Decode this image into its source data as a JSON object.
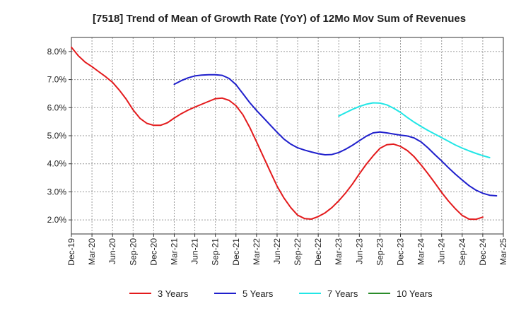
{
  "chart_data": {
    "type": "line",
    "title": "[7518]  Trend of Mean of Growth Rate (YoY) of 12Mo Mov Sum of Revenues",
    "xlabel": "",
    "ylabel": "",
    "ylim": [
      1.5,
      8.5
    ],
    "y_ticks": [
      2.0,
      3.0,
      4.0,
      5.0,
      6.0,
      7.0,
      8.0
    ],
    "y_tick_labels": [
      "2.0%",
      "3.0%",
      "4.0%",
      "5.0%",
      "6.0%",
      "7.0%",
      "8.0%"
    ],
    "x_tick_labels": [
      "Dec-19",
      "Mar-20",
      "Jun-20",
      "Sep-20",
      "Dec-20",
      "Mar-21",
      "Jun-21",
      "Sep-21",
      "Dec-21",
      "Mar-22",
      "Jun-22",
      "Sep-22",
      "Dec-22",
      "Mar-23",
      "Jun-23",
      "Sep-23",
      "Dec-23",
      "Mar-24",
      "Jun-24",
      "Sep-24",
      "Dec-24",
      "Mar-25"
    ],
    "x_range_months": [
      0,
      63
    ],
    "grid": true,
    "legend_position": "bottom",
    "series": [
      {
        "name": "3 Years",
        "color": "#e31a1c",
        "start_month": 0,
        "values": [
          8.15,
          7.85,
          7.62,
          7.46,
          7.28,
          7.1,
          6.9,
          6.62,
          6.3,
          5.92,
          5.62,
          5.44,
          5.37,
          5.37,
          5.46,
          5.63,
          5.78,
          5.91,
          6.02,
          6.12,
          6.22,
          6.32,
          6.34,
          6.26,
          6.07,
          5.75,
          5.3,
          4.78,
          4.25,
          3.72,
          3.2,
          2.78,
          2.44,
          2.17,
          2.05,
          2.03,
          2.12,
          2.25,
          2.44,
          2.68,
          2.96,
          3.28,
          3.64,
          3.98,
          4.28,
          4.55,
          4.68,
          4.7,
          4.62,
          4.47,
          4.25,
          3.96,
          3.65,
          3.32,
          2.98,
          2.67,
          2.4,
          2.16,
          2.03,
          2.02,
          2.1
        ]
      },
      {
        "name": "5 Years",
        "color": "#1f1fcc",
        "start_month": 15,
        "values": [
          6.83,
          6.96,
          7.06,
          7.13,
          7.16,
          7.17,
          7.17,
          7.15,
          7.04,
          6.82,
          6.5,
          6.18,
          5.9,
          5.64,
          5.38,
          5.12,
          4.88,
          4.7,
          4.57,
          4.49,
          4.42,
          4.36,
          4.32,
          4.33,
          4.4,
          4.52,
          4.66,
          4.82,
          4.98,
          5.1,
          5.13,
          5.1,
          5.06,
          5.02,
          4.99,
          4.92,
          4.78,
          4.57,
          4.33,
          4.1,
          3.86,
          3.63,
          3.42,
          3.22,
          3.06,
          2.95,
          2.88,
          2.86
        ]
      },
      {
        "name": "7 Years",
        "color": "#22e6e6",
        "start_month": 39,
        "values": [
          5.7,
          5.82,
          5.94,
          6.04,
          6.12,
          6.17,
          6.16,
          6.1,
          5.98,
          5.83,
          5.65,
          5.48,
          5.33,
          5.19,
          5.06,
          4.93,
          4.8,
          4.67,
          4.56,
          4.46,
          4.37,
          4.29,
          4.22
        ]
      },
      {
        "name": "10 Years",
        "color": "#2a8c2a",
        "start_month": 0,
        "values": []
      }
    ]
  }
}
